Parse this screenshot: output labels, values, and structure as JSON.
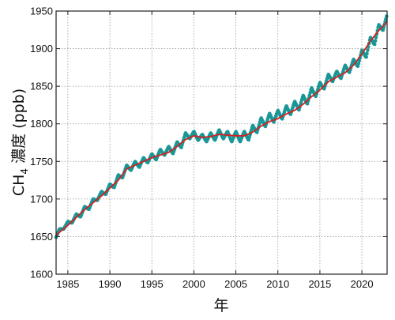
{
  "chart_data": {
    "type": "line",
    "title": "",
    "xlabel": "年",
    "ylabel": {
      "prefix": "CH",
      "subscript": "4",
      "suffix": " 濃度 (ppb)"
    },
    "xlim": [
      1983.6,
      2023.0
    ],
    "ylim": [
      1600,
      1950
    ],
    "xticks": [
      "1985",
      "1990",
      "1995",
      "2000",
      "2005",
      "2010",
      "2015",
      "2020"
    ],
    "yticks": [
      "1600",
      "1650",
      "1700",
      "1750",
      "1800",
      "1850",
      "1900",
      "1950"
    ],
    "grid": true,
    "colors": {
      "monthly": "#1a9696",
      "trend": "#d42020"
    },
    "series": [
      {
        "style": "monthly-points",
        "x": [
          1983.6,
          1984.0,
          1984.5,
          1985.0,
          1985.5,
          1986.0,
          1986.5,
          1987.0,
          1987.5,
          1988.0,
          1988.5,
          1989.0,
          1989.5,
          1990.0,
          1990.5,
          1991.0,
          1991.5,
          1992.0,
          1992.5,
          1993.0,
          1993.5,
          1994.0,
          1994.5,
          1995.0,
          1995.5,
          1996.0,
          1996.5,
          1997.0,
          1997.5,
          1998.0,
          1998.5,
          1999.0,
          1999.5,
          2000.0,
          2000.5,
          2001.0,
          2001.5,
          2002.0,
          2002.5,
          2003.0,
          2003.5,
          2004.0,
          2004.5,
          2005.0,
          2005.5,
          2006.0,
          2006.5,
          2007.0,
          2007.5,
          2008.0,
          2008.5,
          2009.0,
          2009.5,
          2010.0,
          2010.5,
          2011.0,
          2011.5,
          2012.0,
          2012.5,
          2013.0,
          2013.5,
          2014.0,
          2014.5,
          2015.0,
          2015.5,
          2016.0,
          2016.5,
          2017.0,
          2017.5,
          2018.0,
          2018.5,
          2019.0,
          2019.5,
          2020.0,
          2020.5,
          2021.0,
          2021.5,
          2022.0,
          2022.5,
          2023.0
        ],
        "y": [
          1649,
          1660,
          1660,
          1670,
          1668,
          1680,
          1676,
          1690,
          1686,
          1700,
          1698,
          1710,
          1706,
          1720,
          1715,
          1732,
          1728,
          1745,
          1738,
          1750,
          1742,
          1755,
          1748,
          1760,
          1752,
          1766,
          1758,
          1770,
          1760,
          1776,
          1768,
          1788,
          1780,
          1790,
          1778,
          1786,
          1776,
          1788,
          1778,
          1792,
          1780,
          1790,
          1776,
          1790,
          1776,
          1790,
          1778,
          1798,
          1788,
          1808,
          1796,
          1814,
          1802,
          1818,
          1806,
          1824,
          1812,
          1830,
          1818,
          1838,
          1826,
          1848,
          1836,
          1855,
          1846,
          1866,
          1856,
          1870,
          1860,
          1878,
          1868,
          1886,
          1876,
          1898,
          1888,
          1915,
          1905,
          1932,
          1924,
          1946
        ]
      },
      {
        "style": "trend-line",
        "x": [
          1983.6,
          1985,
          1987,
          1989,
          1991,
          1992,
          1993,
          1995,
          1997,
          1998,
          1999,
          2000,
          2001,
          2002,
          2003,
          2004,
          2005,
          2006,
          2007,
          2008,
          2009,
          2010,
          2011,
          2012,
          2013,
          2014,
          2015,
          2016,
          2017,
          2018,
          2019,
          2020,
          2021,
          2022,
          2023
        ],
        "y": [
          1652,
          1665,
          1686,
          1704,
          1725,
          1740,
          1745,
          1755,
          1762,
          1770,
          1779,
          1784,
          1782,
          1783,
          1786,
          1785,
          1784,
          1784,
          1789,
          1797,
          1803,
          1807,
          1813,
          1818,
          1826,
          1836,
          1845,
          1856,
          1862,
          1868,
          1878,
          1893,
          1910,
          1924,
          1936
        ]
      }
    ]
  }
}
